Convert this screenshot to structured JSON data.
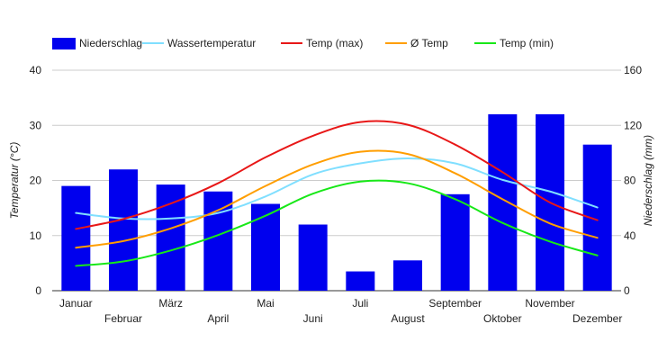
{
  "chart_data": {
    "type": "bar+line",
    "categories": [
      "Januar",
      "Februar",
      "März",
      "April",
      "Mai",
      "Juni",
      "Juli",
      "August",
      "September",
      "Oktober",
      "November",
      "Dezember"
    ],
    "left_axis": {
      "label": "Temperatur (°C)",
      "range": [
        0,
        40
      ],
      "ticks": [
        0,
        10,
        20,
        30,
        40
      ]
    },
    "right_axis": {
      "label": "Niederschlag (mm)",
      "range": [
        0,
        160
      ],
      "ticks": [
        0,
        40,
        80,
        120,
        160
      ]
    },
    "grid": true,
    "legend": "top",
    "bars": {
      "name": "Niederschlag",
      "color": "#0000ee",
      "axis": "right",
      "values": [
        76,
        88,
        77,
        72,
        63,
        48,
        14,
        22,
        70,
        128,
        128,
        106
      ]
    },
    "series": [
      {
        "name": "Wassertemperatur",
        "color": "#80dfff",
        "values": [
          14.1,
          13.1,
          13.1,
          14.1,
          17.1,
          21.1,
          23.1,
          24.0,
          23.1,
          20.1,
          18.0,
          15.1
        ]
      },
      {
        "name": "Temp (max)",
        "color": "#e81717",
        "values": [
          11.2,
          13.0,
          15.8,
          19.5,
          24.2,
          28.1,
          30.6,
          30.1,
          26.5,
          21.5,
          16.0,
          12.8
        ]
      },
      {
        "name": "Ø Temp",
        "color": "#ff9e00",
        "values": [
          7.8,
          9.0,
          11.3,
          14.6,
          19.0,
          22.9,
          25.2,
          24.8,
          21.3,
          16.6,
          12.2,
          9.6
        ]
      },
      {
        "name": "Temp (min)",
        "color": "#17e817",
        "values": [
          4.5,
          5.3,
          7.3,
          10.1,
          13.6,
          17.6,
          19.8,
          19.5,
          16.6,
          12.3,
          8.9,
          6.4
        ]
      }
    ]
  }
}
